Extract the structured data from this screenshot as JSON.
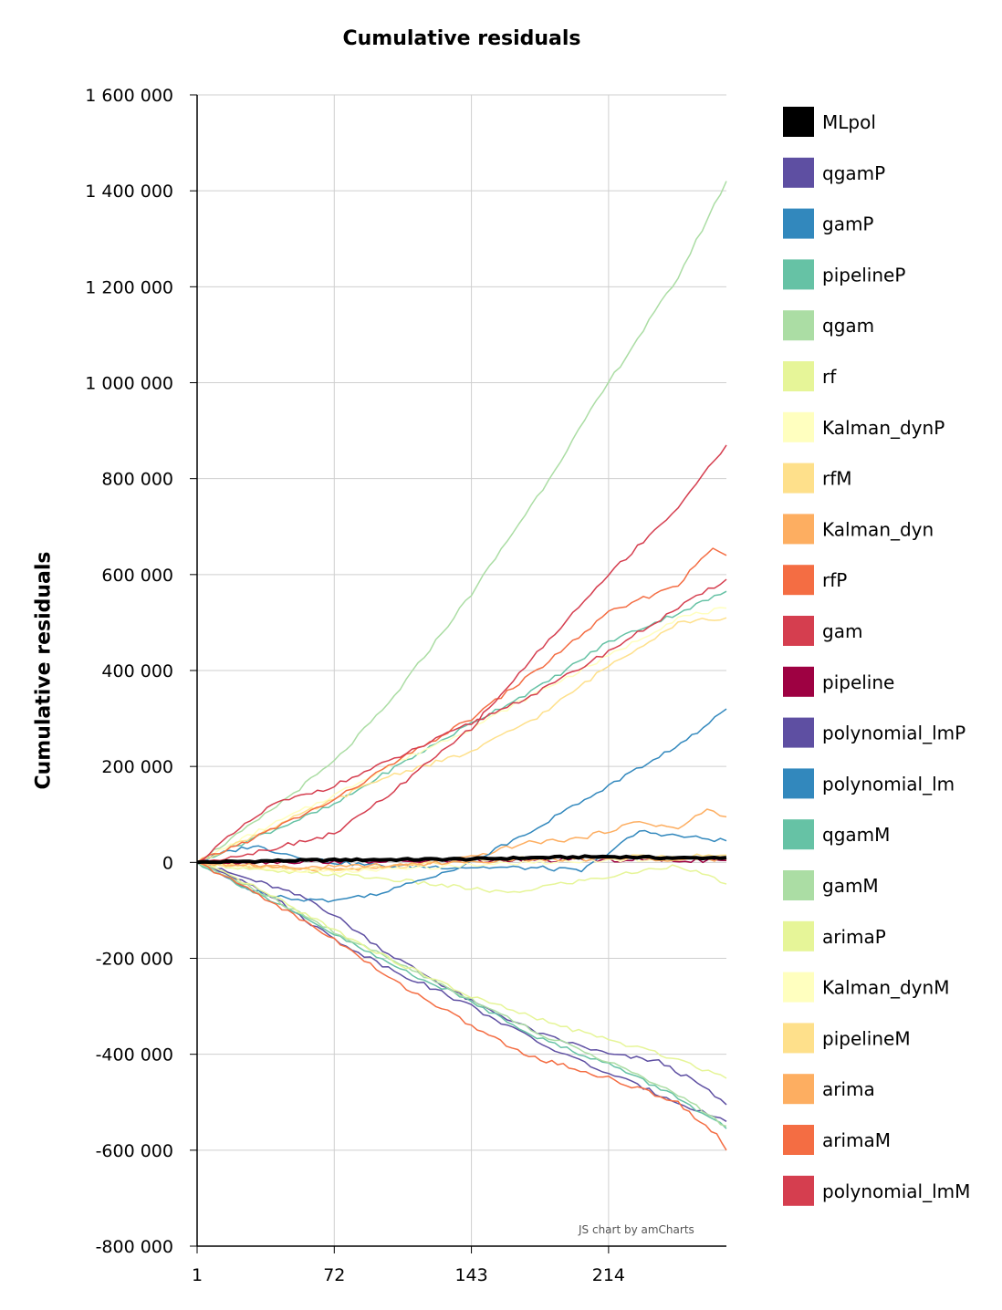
{
  "chart_data": {
    "type": "line",
    "title": "Cumulative residuals",
    "ylabel": "Cumulative residuals",
    "xlabel": "",
    "credit": "JS chart by amCharts",
    "x_ticks": [
      "1",
      "72",
      "143",
      "214"
    ],
    "xlim": [
      1,
      275
    ],
    "ylim": [
      -800000,
      1600000
    ],
    "y_ticks": [
      {
        "value": 1600000,
        "label": "1 600 000"
      },
      {
        "value": 1400000,
        "label": "1 400 000"
      },
      {
        "value": 1200000,
        "label": "1 200 000"
      },
      {
        "value": 1000000,
        "label": "1 000 000"
      },
      {
        "value": 800000,
        "label": "800 000"
      },
      {
        "value": 600000,
        "label": "600 000"
      },
      {
        "value": 400000,
        "label": "400 000"
      },
      {
        "value": 200000,
        "label": "200 000"
      },
      {
        "value": 0,
        "label": "0"
      },
      {
        "value": -200000,
        "label": "-200 000"
      },
      {
        "value": -400000,
        "label": "-400 000"
      },
      {
        "value": -600000,
        "label": "-600 000"
      },
      {
        "value": -800000,
        "label": "-800 000"
      }
    ],
    "grid": true,
    "legend_position": "right",
    "series": [
      {
        "name": "MLpol",
        "color": "#000000",
        "width": 4,
        "points": [
          [
            1,
            0
          ],
          [
            40,
            3000
          ],
          [
            72,
            5000
          ],
          [
            110,
            6000
          ],
          [
            143,
            7000
          ],
          [
            180,
            10000
          ],
          [
            214,
            12000
          ],
          [
            250,
            9000
          ],
          [
            275,
            10000
          ]
        ]
      },
      {
        "name": "qgamP",
        "color": "#5e4fa2",
        "width": 1.5,
        "points": [
          [
            1,
            0
          ],
          [
            20,
            -25000
          ],
          [
            40,
            -50000
          ],
          [
            60,
            -80000
          ],
          [
            72,
            -110000
          ],
          [
            100,
            -190000
          ],
          [
            143,
            -290000
          ],
          [
            180,
            -360000
          ],
          [
            214,
            -400000
          ],
          [
            240,
            -415000
          ],
          [
            260,
            -460000
          ],
          [
            275,
            -505000
          ]
        ]
      },
      {
        "name": "gamP",
        "color": "#3288bd",
        "width": 1.5,
        "points": [
          [
            1,
            0
          ],
          [
            15,
            20000
          ],
          [
            30,
            35000
          ],
          [
            50,
            15000
          ],
          [
            72,
            0
          ],
          [
            100,
            -8000
          ],
          [
            143,
            -10000
          ],
          [
            180,
            -12000
          ],
          [
            200,
            -18000
          ],
          [
            214,
            20000
          ],
          [
            230,
            65000
          ],
          [
            250,
            55000
          ],
          [
            275,
            45000
          ]
        ]
      },
      {
        "name": "pipelineP",
        "color": "#66c2a5",
        "width": 1.5,
        "points": [
          [
            1,
            0
          ],
          [
            30,
            50000
          ],
          [
            72,
            120000
          ],
          [
            100,
            190000
          ],
          [
            143,
            290000
          ],
          [
            180,
            370000
          ],
          [
            214,
            460000
          ],
          [
            250,
            520000
          ],
          [
            275,
            565000
          ]
        ]
      },
      {
        "name": "qgam",
        "color": "#abdda4",
        "width": 1.5,
        "points": [
          [
            1,
            0
          ],
          [
            30,
            80000
          ],
          [
            72,
            210000
          ],
          [
            100,
            330000
          ],
          [
            143,
            560000
          ],
          [
            180,
            780000
          ],
          [
            214,
            1000000
          ],
          [
            250,
            1220000
          ],
          [
            275,
            1420000
          ]
        ]
      },
      {
        "name": "rf",
        "color": "#e6f598",
        "width": 1.5,
        "points": [
          [
            1,
            0
          ],
          [
            40,
            -20000
          ],
          [
            72,
            -25000
          ],
          [
            100,
            -35000
          ],
          [
            143,
            -55000
          ],
          [
            165,
            -65000
          ],
          [
            180,
            -50000
          ],
          [
            214,
            -30000
          ],
          [
            250,
            -5000
          ],
          [
            275,
            -45000
          ]
        ]
      },
      {
        "name": "Kalman_dynP",
        "color": "#ffffbf",
        "width": 1.5,
        "points": [
          [
            1,
            0
          ],
          [
            30,
            60000
          ],
          [
            72,
            140000
          ],
          [
            100,
            200000
          ],
          [
            143,
            280000
          ],
          [
            180,
            360000
          ],
          [
            214,
            430000
          ],
          [
            250,
            510000
          ],
          [
            275,
            530000
          ]
        ]
      },
      {
        "name": "rfM",
        "color": "#fee08b",
        "width": 1.5,
        "points": [
          [
            1,
            0
          ],
          [
            30,
            55000
          ],
          [
            72,
            130000
          ],
          [
            100,
            180000
          ],
          [
            143,
            230000
          ],
          [
            180,
            310000
          ],
          [
            214,
            410000
          ],
          [
            250,
            500000
          ],
          [
            275,
            510000
          ]
        ]
      },
      {
        "name": "Kalman_dyn",
        "color": "#fdae61",
        "width": 1.5,
        "points": [
          [
            1,
            0
          ],
          [
            40,
            -10000
          ],
          [
            72,
            -15000
          ],
          [
            100,
            -10000
          ],
          [
            143,
            10000
          ],
          [
            170,
            40000
          ],
          [
            200,
            50000
          ],
          [
            230,
            85000
          ],
          [
            250,
            70000
          ],
          [
            265,
            110000
          ],
          [
            275,
            95000
          ]
        ]
      },
      {
        "name": "rfP",
        "color": "#f46d43",
        "width": 1.5,
        "points": [
          [
            1,
            0
          ],
          [
            30,
            50000
          ],
          [
            72,
            130000
          ],
          [
            100,
            200000
          ],
          [
            143,
            300000
          ],
          [
            180,
            410000
          ],
          [
            214,
            520000
          ],
          [
            250,
            580000
          ],
          [
            268,
            655000
          ],
          [
            275,
            640000
          ]
        ]
      },
      {
        "name": "gam",
        "color": "#d53e4f",
        "width": 1.5,
        "points": [
          [
            1,
            0
          ],
          [
            20,
            60000
          ],
          [
            40,
            120000
          ],
          [
            72,
            160000
          ],
          [
            100,
            210000
          ],
          [
            143,
            290000
          ],
          [
            180,
            360000
          ],
          [
            214,
            440000
          ],
          [
            250,
            530000
          ],
          [
            275,
            590000
          ]
        ]
      },
      {
        "name": "pipeline",
        "color": "#9e0142",
        "width": 1.5,
        "points": [
          [
            1,
            0
          ],
          [
            72,
            2000
          ],
          [
            143,
            3000
          ],
          [
            214,
            5000
          ],
          [
            275,
            4000
          ]
        ]
      },
      {
        "name": "polynomial_lmP",
        "color": "#5e4fa2",
        "width": 1.5,
        "points": [
          [
            1,
            0
          ],
          [
            30,
            -45000
          ],
          [
            72,
            -160000
          ],
          [
            100,
            -220000
          ],
          [
            143,
            -300000
          ],
          [
            180,
            -380000
          ],
          [
            214,
            -440000
          ],
          [
            250,
            -500000
          ],
          [
            275,
            -540000
          ]
        ]
      },
      {
        "name": "polynomial_lm",
        "color": "#3288bd",
        "width": 1.5,
        "points": [
          [
            1,
            0
          ],
          [
            30,
            -60000
          ],
          [
            50,
            -75000
          ],
          [
            72,
            -80000
          ],
          [
            100,
            -60000
          ],
          [
            143,
            0
          ],
          [
            180,
            80000
          ],
          [
            214,
            160000
          ],
          [
            240,
            220000
          ],
          [
            260,
            270000
          ],
          [
            275,
            320000
          ]
        ]
      },
      {
        "name": "qgamM",
        "color": "#66c2a5",
        "width": 1.5,
        "points": [
          [
            1,
            0
          ],
          [
            30,
            -60000
          ],
          [
            72,
            -150000
          ],
          [
            100,
            -210000
          ],
          [
            143,
            -290000
          ],
          [
            180,
            -370000
          ],
          [
            214,
            -420000
          ],
          [
            250,
            -490000
          ],
          [
            275,
            -555000
          ]
        ]
      },
      {
        "name": "gamM",
        "color": "#abdda4",
        "width": 1.5,
        "points": [
          [
            1,
            0
          ],
          [
            30,
            -55000
          ],
          [
            72,
            -145000
          ],
          [
            100,
            -200000
          ],
          [
            143,
            -285000
          ],
          [
            180,
            -360000
          ],
          [
            214,
            -415000
          ],
          [
            250,
            -485000
          ],
          [
            275,
            -550000
          ]
        ]
      },
      {
        "name": "arimaP",
        "color": "#e6f598",
        "width": 1.5,
        "points": [
          [
            1,
            0
          ],
          [
            30,
            -50000
          ],
          [
            72,
            -140000
          ],
          [
            100,
            -200000
          ],
          [
            143,
            -280000
          ],
          [
            180,
            -330000
          ],
          [
            214,
            -370000
          ],
          [
            250,
            -410000
          ],
          [
            275,
            -450000
          ]
        ]
      },
      {
        "name": "Kalman_dynM",
        "color": "#ffffbf",
        "width": 1.5,
        "points": [
          [
            1,
            0
          ],
          [
            40,
            -15000
          ],
          [
            72,
            -20000
          ],
          [
            100,
            -15000
          ],
          [
            143,
            -5000
          ],
          [
            214,
            5000
          ],
          [
            275,
            10000
          ]
        ]
      },
      {
        "name": "pipelineM",
        "color": "#fee08b",
        "width": 1.5,
        "points": [
          [
            1,
            0
          ],
          [
            40,
            -12000
          ],
          [
            72,
            -18000
          ],
          [
            100,
            -10000
          ],
          [
            143,
            5000
          ],
          [
            214,
            12000
          ],
          [
            275,
            15000
          ]
        ]
      },
      {
        "name": "arima",
        "color": "#fdae61",
        "width": 1.5,
        "points": [
          [
            1,
            0
          ],
          [
            40,
            -8000
          ],
          [
            72,
            -10000
          ],
          [
            100,
            -5000
          ],
          [
            143,
            2000
          ],
          [
            214,
            8000
          ],
          [
            275,
            6000
          ]
        ]
      },
      {
        "name": "arimaM",
        "color": "#f46d43",
        "width": 1.5,
        "points": [
          [
            1,
            0
          ],
          [
            30,
            -60000
          ],
          [
            72,
            -160000
          ],
          [
            100,
            -240000
          ],
          [
            143,
            -340000
          ],
          [
            170,
            -400000
          ],
          [
            214,
            -450000
          ],
          [
            250,
            -500000
          ],
          [
            270,
            -570000
          ],
          [
            275,
            -600000
          ]
        ]
      },
      {
        "name": "polynomial_lmM",
        "color": "#d53e4f",
        "width": 1.5,
        "points": [
          [
            1,
            0
          ],
          [
            30,
            20000
          ],
          [
            72,
            60000
          ],
          [
            100,
            140000
          ],
          [
            143,
            280000
          ],
          [
            180,
            450000
          ],
          [
            214,
            600000
          ],
          [
            250,
            740000
          ],
          [
            275,
            870000
          ]
        ]
      }
    ]
  }
}
